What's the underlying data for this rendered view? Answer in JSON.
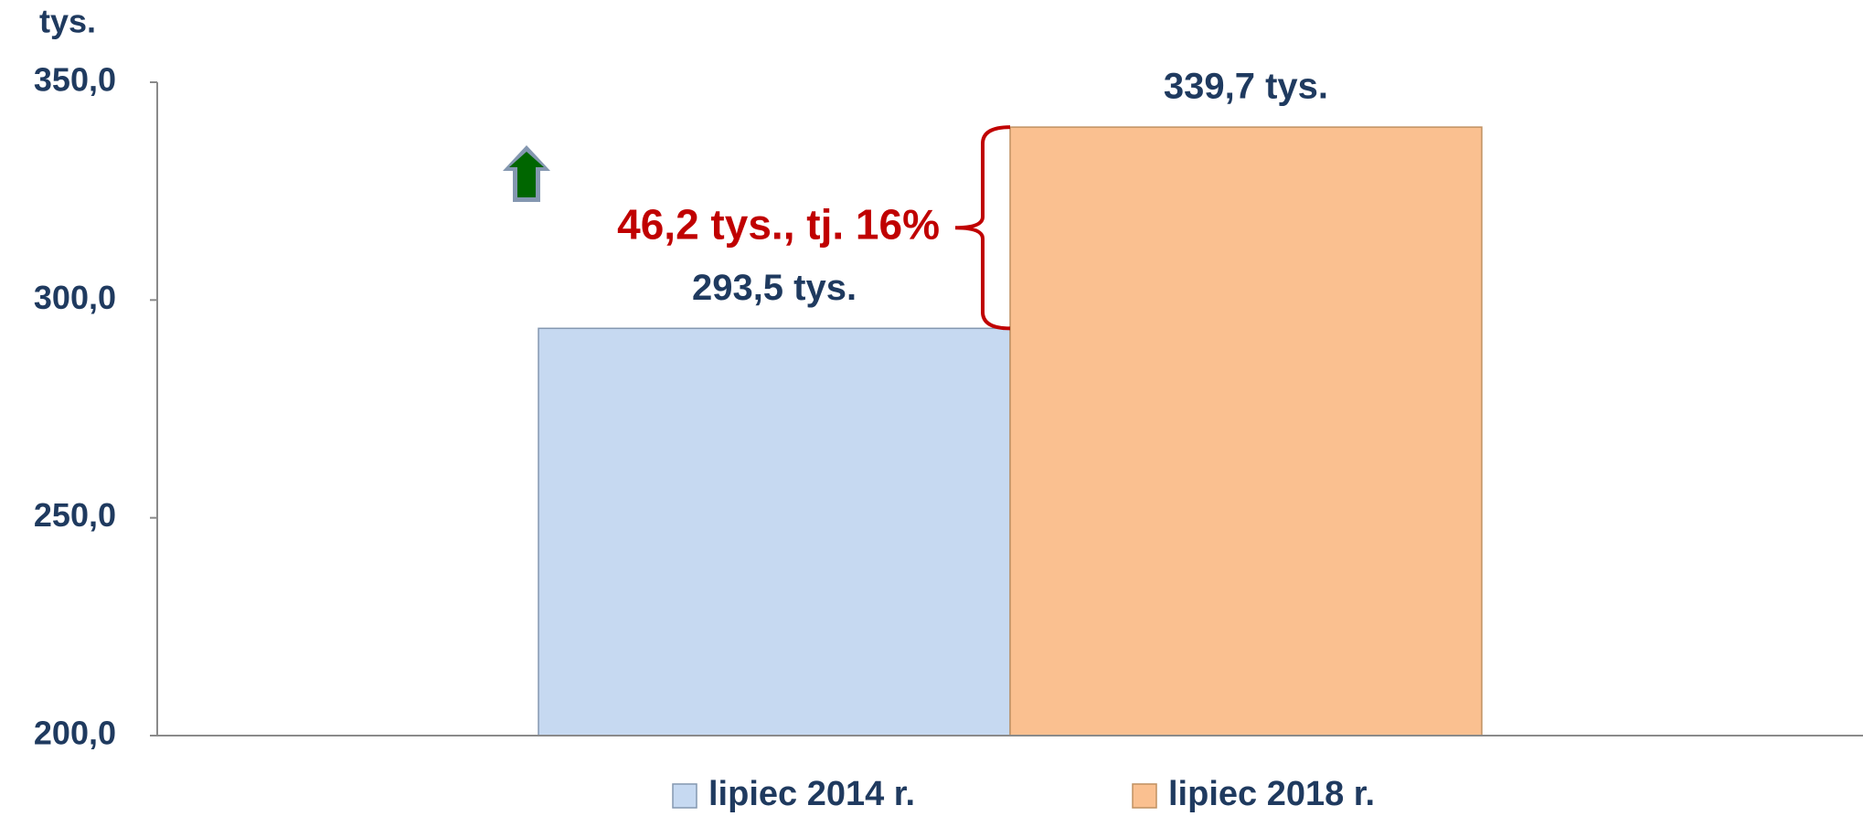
{
  "chart_data": {
    "type": "bar",
    "y_unit": "tys.",
    "annotation": "46,2 tys., tj. 16%",
    "categories": [
      null
    ],
    "series": [
      {
        "name": "lipiec 2014 r.",
        "color": "#c6d9f1",
        "values": [
          293.5
        ],
        "value_labels": [
          "293,5 tys."
        ]
      },
      {
        "name": "lipiec 2018 r.",
        "color": "#fac090",
        "values": [
          339.7
        ],
        "value_labels": [
          "339,7 tys."
        ]
      }
    ],
    "ylim": [
      200,
      350
    ],
    "yticks": [
      {
        "value": 200,
        "label": "200,0"
      },
      {
        "value": 250,
        "label": "250,0"
      },
      {
        "value": 300,
        "label": "300,0"
      },
      {
        "value": 350,
        "label": "350,0"
      }
    ],
    "grid": false,
    "legend": "bottom"
  }
}
